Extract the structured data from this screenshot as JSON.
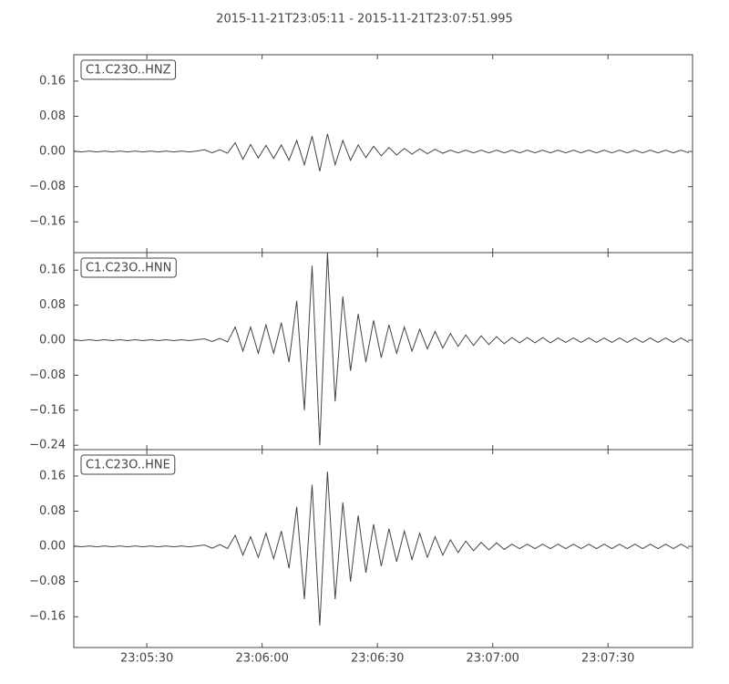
{
  "chart_data": [
    {
      "type": "line",
      "title": "2015-11-21T23:05:11  -  2015-11-21T23:07:51.995",
      "label": "C1.C23O..HNZ",
      "color": "#444444",
      "xlim": [
        0,
        160.995
      ],
      "ylim": [
        -0.23,
        0.22
      ],
      "yticks": [
        {
          "value": -0.16,
          "label": "−0.16"
        },
        {
          "value": -0.08,
          "label": "−0.08"
        },
        {
          "value": 0,
          "label": "0.00"
        },
        {
          "value": 0.08,
          "label": "0.08"
        },
        {
          "value": 0.16,
          "label": "0.16"
        }
      ],
      "x": [
        0,
        2,
        4,
        6,
        8,
        10,
        12,
        14,
        16,
        18,
        20,
        22,
        24,
        26,
        28,
        30,
        32,
        34,
        36,
        38,
        40,
        42,
        44,
        46,
        48,
        50,
        52,
        54,
        56,
        58,
        60,
        62,
        64,
        66,
        68,
        70,
        72,
        74,
        76,
        78,
        80,
        82,
        84,
        86,
        88,
        90,
        92,
        94,
        96,
        98,
        100,
        102,
        104,
        106,
        108,
        110,
        112,
        114,
        116,
        118,
        120,
        122,
        124,
        126,
        128,
        130,
        132,
        134,
        136,
        138,
        140,
        142,
        144,
        146,
        148,
        150,
        152,
        154,
        156,
        158,
        160
      ],
      "values": [
        0.001,
        -0.001,
        0.001,
        -0.001,
        0.001,
        -0.001,
        0.001,
        -0.001,
        0.001,
        -0.001,
        0.001,
        -0.001,
        0.001,
        -0.001,
        0.001,
        -0.001,
        0.001,
        0.004,
        -0.003,
        0.004,
        -0.004,
        0.02,
        -0.018,
        0.016,
        -0.015,
        0.014,
        -0.016,
        0.015,
        -0.02,
        0.025,
        -0.03,
        0.035,
        -0.045,
        0.04,
        -0.03,
        0.025,
        -0.02,
        0.015,
        -0.014,
        0.012,
        -0.01,
        0.009,
        -0.008,
        0.007,
        -0.006,
        0.006,
        -0.005,
        0.005,
        -0.004,
        0.003,
        -0.003,
        0.003,
        -0.003,
        0.003,
        -0.003,
        0.003,
        -0.003,
        0.003,
        -0.003,
        0.003,
        -0.003,
        0.003,
        -0.003,
        0.003,
        -0.003,
        0.003,
        -0.003,
        0.003,
        -0.003,
        0.003,
        -0.003,
        0.003,
        -0.003,
        0.003,
        -0.003,
        0.003,
        -0.003,
        0.003,
        -0.003,
        0.003,
        -0.003
      ]
    },
    {
      "type": "line",
      "label": "C1.C23O..HNN",
      "color": "#444444",
      "xlim": [
        0,
        160.995
      ],
      "ylim": [
        -0.25,
        0.2
      ],
      "yticks": [
        {
          "value": -0.24,
          "label": "−0.24"
        },
        {
          "value": -0.16,
          "label": "−0.16"
        },
        {
          "value": -0.08,
          "label": "−0.08"
        },
        {
          "value": 0,
          "label": "0.00"
        },
        {
          "value": 0.08,
          "label": "0.08"
        },
        {
          "value": 0.16,
          "label": "0.16"
        }
      ],
      "x": [
        0,
        2,
        4,
        6,
        8,
        10,
        12,
        14,
        16,
        18,
        20,
        22,
        24,
        26,
        28,
        30,
        32,
        34,
        36,
        38,
        40,
        42,
        44,
        46,
        48,
        50,
        52,
        54,
        56,
        58,
        60,
        62,
        64,
        66,
        68,
        70,
        72,
        74,
        76,
        78,
        80,
        82,
        84,
        86,
        88,
        90,
        92,
        94,
        96,
        98,
        100,
        102,
        104,
        106,
        108,
        110,
        112,
        114,
        116,
        118,
        120,
        122,
        124,
        126,
        128,
        130,
        132,
        134,
        136,
        138,
        140,
        142,
        144,
        146,
        148,
        150,
        152,
        154,
        156,
        158,
        160
      ],
      "values": [
        0.001,
        -0.001,
        0.001,
        -0.001,
        0.001,
        -0.001,
        0.001,
        -0.001,
        0.001,
        -0.001,
        0.001,
        -0.001,
        0.001,
        -0.001,
        0.001,
        -0.001,
        0.001,
        0.003,
        -0.003,
        0.004,
        -0.004,
        0.03,
        -0.025,
        0.03,
        -0.03,
        0.035,
        -0.03,
        0.04,
        -0.05,
        0.09,
        -0.16,
        0.17,
        -0.24,
        0.2,
        -0.14,
        0.1,
        -0.07,
        0.06,
        -0.05,
        0.045,
        -0.04,
        0.035,
        -0.03,
        0.03,
        -0.025,
        0.025,
        -0.02,
        0.02,
        -0.018,
        0.015,
        -0.014,
        0.012,
        -0.012,
        0.01,
        -0.01,
        0.008,
        -0.008,
        0.006,
        -0.006,
        0.006,
        -0.006,
        0.006,
        -0.006,
        0.005,
        -0.005,
        0.005,
        -0.005,
        0.005,
        -0.005,
        0.005,
        -0.005,
        0.005,
        -0.005,
        0.005,
        -0.005,
        0.005,
        -0.005,
        0.005,
        -0.005,
        0.005,
        -0.005
      ]
    },
    {
      "type": "line",
      "label": "C1.C23O..HNE",
      "color": "#444444",
      "xlim": [
        0,
        160.995
      ],
      "ylim": [
        -0.23,
        0.22
      ],
      "yticks": [
        {
          "value": -0.16,
          "label": "−0.16"
        },
        {
          "value": -0.08,
          "label": "−0.08"
        },
        {
          "value": 0,
          "label": "0.00"
        },
        {
          "value": 0.08,
          "label": "0.08"
        },
        {
          "value": 0.16,
          "label": "0.16"
        }
      ],
      "xticks": [
        {
          "value": 19,
          "label": "23:05:30"
        },
        {
          "value": 49,
          "label": "23:06:00"
        },
        {
          "value": 79,
          "label": "23:06:30"
        },
        {
          "value": 109,
          "label": "23:07:00"
        },
        {
          "value": 139,
          "label": "23:07:30"
        }
      ],
      "x": [
        0,
        2,
        4,
        6,
        8,
        10,
        12,
        14,
        16,
        18,
        20,
        22,
        24,
        26,
        28,
        30,
        32,
        34,
        36,
        38,
        40,
        42,
        44,
        46,
        48,
        50,
        52,
        54,
        56,
        58,
        60,
        62,
        64,
        66,
        68,
        70,
        72,
        74,
        76,
        78,
        80,
        82,
        84,
        86,
        88,
        90,
        92,
        94,
        96,
        98,
        100,
        102,
        104,
        106,
        108,
        110,
        112,
        114,
        116,
        118,
        120,
        122,
        124,
        126,
        128,
        130,
        132,
        134,
        136,
        138,
        140,
        142,
        144,
        146,
        148,
        150,
        152,
        154,
        156,
        158,
        160
      ],
      "values": [
        0.001,
        -0.001,
        0.001,
        -0.001,
        0.001,
        -0.001,
        0.001,
        -0.001,
        0.001,
        -0.001,
        0.001,
        -0.001,
        0.001,
        -0.001,
        0.001,
        -0.001,
        0.001,
        0.003,
        -0.004,
        0.004,
        -0.005,
        0.025,
        -0.02,
        0.022,
        -0.025,
        0.03,
        -0.028,
        0.035,
        -0.05,
        0.09,
        -0.12,
        0.14,
        -0.18,
        0.17,
        -0.12,
        0.1,
        -0.08,
        0.07,
        -0.06,
        0.05,
        -0.045,
        0.04,
        -0.035,
        0.035,
        -0.03,
        0.03,
        -0.025,
        0.022,
        -0.02,
        0.015,
        -0.014,
        0.012,
        -0.01,
        0.009,
        -0.008,
        0.008,
        -0.007,
        0.005,
        -0.005,
        0.005,
        -0.005,
        0.005,
        -0.005,
        0.005,
        -0.005,
        0.005,
        -0.005,
        0.005,
        -0.005,
        0.005,
        -0.005,
        0.005,
        -0.005,
        0.005,
        -0.005,
        0.005,
        -0.005,
        0.005,
        -0.005,
        0.005,
        -0.005
      ]
    }
  ]
}
